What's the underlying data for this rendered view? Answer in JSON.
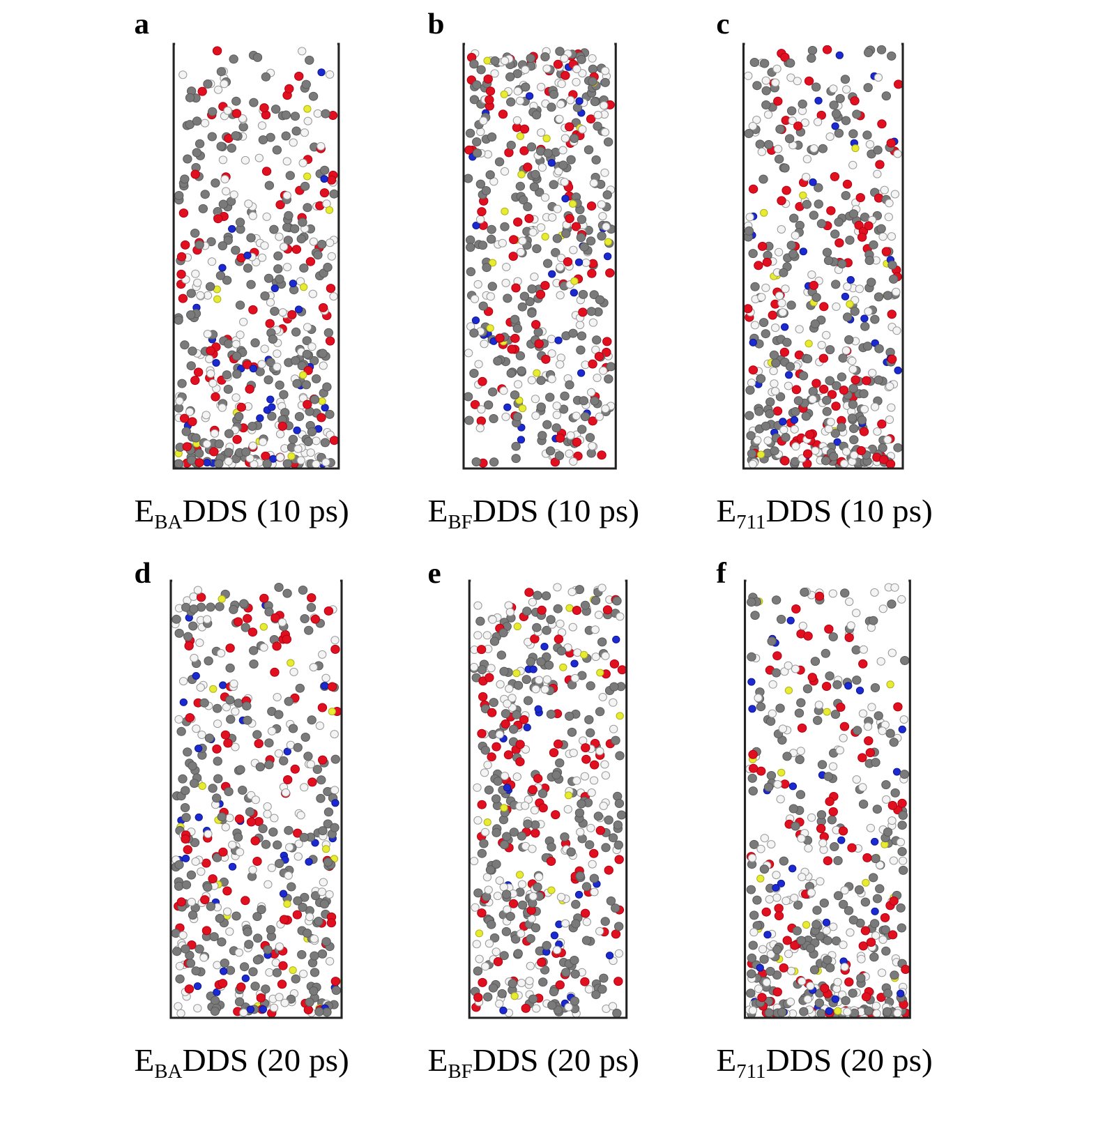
{
  "panels": [
    {
      "label": "a",
      "caption": {
        "main": "E",
        "sub": "BA",
        "rest": "DDS (10 ps)"
      }
    },
    {
      "label": "b",
      "caption": {
        "main": "E",
        "sub": "BF",
        "rest": "DDS (10 ps)"
      }
    },
    {
      "label": "c",
      "caption": {
        "main": "E",
        "sub": "711",
        "rest": "DDS (10 ps)"
      }
    },
    {
      "label": "d",
      "caption": {
        "main": "E",
        "sub": "BA",
        "rest": "DDS (20 ps)"
      }
    },
    {
      "label": "e",
      "caption": {
        "main": "E",
        "sub": "BF",
        "rest": "DDS (20 ps)"
      }
    },
    {
      "label": "f",
      "caption": {
        "main": "E",
        "sub": "711",
        "rest": "DDS (20 ps)"
      }
    }
  ]
}
